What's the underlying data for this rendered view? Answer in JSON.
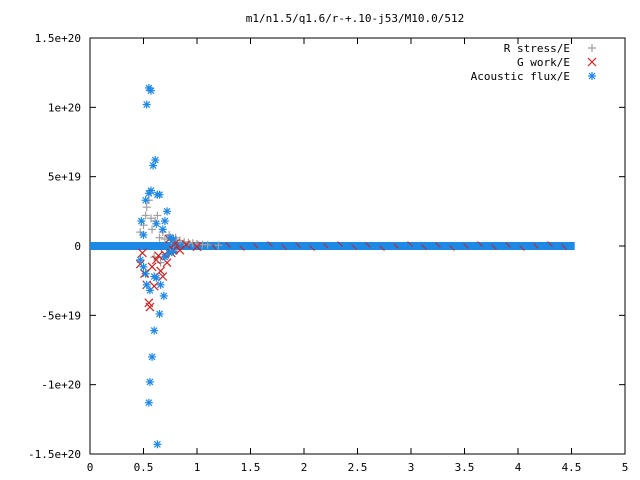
{
  "chart_data": {
    "type": "scatter",
    "title": "m1/n1.5/q1.6/r-+.10-j53/M10.0/512",
    "xlabel": "",
    "ylabel": "",
    "xlim": [
      0,
      5
    ],
    "ylim": [
      -1.5e+20,
      1.5e+20
    ],
    "x_ticks": [
      {
        "v": 0,
        "label": "0"
      },
      {
        "v": 0.5,
        "label": "0.5"
      },
      {
        "v": 1,
        "label": "1"
      },
      {
        "v": 1.5,
        "label": "1.5"
      },
      {
        "v": 2,
        "label": "2"
      },
      {
        "v": 2.5,
        "label": "2.5"
      },
      {
        "v": 3,
        "label": "3"
      },
      {
        "v": 3.5,
        "label": "3.5"
      },
      {
        "v": 4,
        "label": "4"
      },
      {
        "v": 4.5,
        "label": "4.5"
      },
      {
        "v": 5,
        "label": "5"
      }
    ],
    "y_ticks": [
      {
        "v": 1.5e+20,
        "label": "1.5e+20"
      },
      {
        "v": 1e+20,
        "label": "1e+20"
      },
      {
        "v": 5e+19,
        "label": "5e+19"
      },
      {
        "v": 0,
        "label": "0"
      },
      {
        "v": -5e+19,
        "label": "-5e+19"
      },
      {
        "v": -1e+20,
        "label": "-1e+20"
      },
      {
        "v": -1.5e+20,
        "label": "-1.5e+20"
      }
    ],
    "grid": false,
    "legend_position": "top-right",
    "series": [
      {
        "name": "R stress/E",
        "marker": "plus",
        "color": "#a0a0a0",
        "points": [
          [
            0.47,
            1e+19
          ],
          [
            0.5,
            1.5e+19
          ],
          [
            0.52,
            2.2e+19
          ],
          [
            0.53,
            2.8e+19
          ],
          [
            0.55,
            3.3e+19
          ],
          [
            0.57,
            2e+19
          ],
          [
            0.58,
            1.2e+19
          ],
          [
            0.6,
            -8e+18
          ],
          [
            0.61,
            1.8e+19
          ],
          [
            0.63,
            2.2e+19
          ],
          [
            0.65,
            6e+18
          ],
          [
            0.66,
            -1.2e+19
          ],
          [
            0.68,
            1e+19
          ],
          [
            0.7,
            5e+18
          ],
          [
            0.72,
            -6e+18
          ],
          [
            0.74,
            8e+18
          ],
          [
            0.76,
            4e+18
          ],
          [
            0.78,
            -3e+18
          ],
          [
            0.8,
            6e+18
          ],
          [
            0.84,
            4e+18
          ],
          [
            0.88,
            3e+18
          ],
          [
            0.92,
            2.5e+18
          ],
          [
            0.96,
            2e+18
          ],
          [
            1.0,
            1.5e+18
          ],
          [
            1.05,
            1e+18
          ],
          [
            1.1,
            8e+17
          ],
          [
            1.2,
            5e+17
          ]
        ]
      },
      {
        "name": "G work/E",
        "marker": "cross",
        "color": "#cc2222",
        "points": [
          [
            0.47,
            -1.3e+19
          ],
          [
            0.49,
            -5e+18
          ],
          [
            0.51,
            -2e+19
          ],
          [
            0.53,
            -2.8e+19
          ],
          [
            0.55,
            -4.1e+19
          ],
          [
            0.56,
            -4.4e+19
          ],
          [
            0.58,
            -1.5e+19
          ],
          [
            0.6,
            -2.9e+19
          ],
          [
            0.62,
            -1e+19
          ],
          [
            0.64,
            -7e+18
          ],
          [
            0.66,
            -1.8e+19
          ],
          [
            0.68,
            -2.2e+19
          ],
          [
            0.7,
            -6e+18
          ],
          [
            0.72,
            -1.2e+19
          ],
          [
            0.74,
            5e+18
          ],
          [
            0.76,
            -5e+18
          ],
          [
            0.78,
            -3e+18
          ],
          [
            0.8,
            2e+18
          ],
          [
            0.84,
            -3e+18
          ],
          [
            0.9,
            1e+18
          ],
          [
            1.0,
            -5e+17
          ]
        ]
      },
      {
        "name": "Acoustic flux/E",
        "marker": "star",
        "color": "#1e88e5",
        "points": [
          [
            0.53,
            1.02e+20
          ],
          [
            0.55,
            1.14e+20
          ],
          [
            0.57,
            1.12e+20
          ],
          [
            0.59,
            5.8e+19
          ],
          [
            0.61,
            6.2e+19
          ],
          [
            0.57,
            4e+19
          ],
          [
            0.55,
            3.8e+19
          ],
          [
            0.63,
            3.7e+19
          ],
          [
            0.65,
            3.7e+19
          ],
          [
            0.52,
            3.3e+19
          ],
          [
            0.72,
            2.5e+19
          ],
          [
            0.48,
            1.8e+19
          ],
          [
            0.62,
            1.6e+19
          ],
          [
            0.7,
            1.8e+19
          ],
          [
            0.68,
            1.2e+19
          ],
          [
            0.5,
            8e+18
          ],
          [
            0.75,
            6e+18
          ],
          [
            0.78,
            5e+18
          ],
          [
            0.47,
            -1e+19
          ],
          [
            0.5,
            -1.5e+19
          ],
          [
            0.52,
            -2e+19
          ],
          [
            0.53,
            -2.8e+19
          ],
          [
            0.56,
            -3.2e+19
          ],
          [
            0.6,
            -2.2e+19
          ],
          [
            0.62,
            -2.3e+19
          ],
          [
            0.66,
            -2.8e+19
          ],
          [
            0.69,
            -3.6e+19
          ],
          [
            0.65,
            -4.9e+19
          ],
          [
            0.6,
            -6.1e+19
          ],
          [
            0.58,
            -8e+19
          ],
          [
            0.56,
            -9.8e+19
          ],
          [
            0.55,
            -1.13e+20
          ],
          [
            0.63,
            -1.43e+20
          ],
          [
            0.7,
            -8e+18
          ],
          [
            0.74,
            -5e+18
          ],
          [
            0.78,
            -4e+18
          ]
        ]
      }
    ],
    "baseline_band": {
      "x_start": 0.0,
      "x_end": 4.53,
      "note_color_acoustic": "#1e88e5",
      "note_color_g": "#cc2222"
    }
  }
}
